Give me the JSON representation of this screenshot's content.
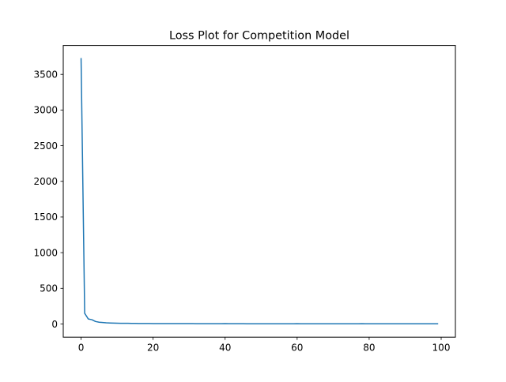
{
  "chart_data": {
    "type": "line",
    "title": "Loss Plot for Competition Model",
    "xlabel": "",
    "ylabel": "",
    "xlim": [
      -4.95,
      103.95
    ],
    "ylim": [
      -185,
      3905
    ],
    "x_ticks": [
      0,
      20,
      40,
      60,
      80,
      100
    ],
    "y_ticks": [
      0,
      500,
      1000,
      1500,
      2000,
      2500,
      3000,
      3500
    ],
    "grid": false,
    "series": [
      {
        "name": "loss",
        "color": "#1f77b4",
        "x": [
          0,
          1,
          2,
          3,
          4,
          5,
          6,
          7,
          8,
          9,
          10,
          11,
          12,
          13,
          14,
          15,
          16,
          17,
          18,
          19,
          20,
          21,
          22,
          23,
          24,
          25,
          26,
          27,
          28,
          29,
          30,
          31,
          32,
          33,
          34,
          35,
          36,
          37,
          38,
          39,
          40,
          41,
          42,
          43,
          44,
          45,
          46,
          47,
          48,
          49,
          50,
          51,
          52,
          53,
          54,
          55,
          56,
          57,
          58,
          59,
          60,
          61,
          62,
          63,
          64,
          65,
          66,
          67,
          68,
          69,
          70,
          71,
          72,
          73,
          74,
          75,
          76,
          77,
          78,
          79,
          80,
          81,
          82,
          83,
          84,
          85,
          86,
          87,
          88,
          89,
          90,
          91,
          92,
          93,
          94,
          95,
          96,
          97,
          98,
          99
        ],
        "values": [
          3720,
          150,
          70,
          60,
          35,
          25,
          20,
          16,
          14,
          12,
          11,
          10,
          9,
          9,
          8,
          8,
          7,
          7,
          7,
          7,
          6,
          6,
          6,
          6,
          5,
          5,
          5,
          5,
          5,
          5,
          5,
          5,
          4,
          4,
          4,
          4,
          4,
          4,
          4,
          4,
          5,
          4,
          4,
          4,
          4,
          4,
          3,
          3,
          3,
          3,
          3,
          3,
          3,
          3,
          3,
          3,
          3,
          3,
          3,
          3,
          4,
          3,
          3,
          3,
          3,
          3,
          3,
          3,
          3,
          3,
          3,
          3,
          3,
          3,
          3,
          3,
          3,
          3,
          4,
          3,
          3,
          3,
          3,
          3,
          3,
          2,
          2,
          2,
          2,
          2,
          2,
          2,
          2,
          2,
          2,
          2,
          2,
          2,
          2,
          2
        ]
      }
    ]
  }
}
